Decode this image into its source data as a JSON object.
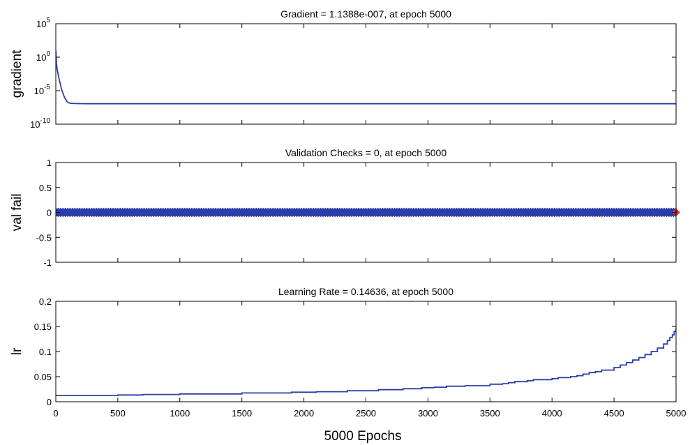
{
  "figure": {
    "xlabel": "5000 Epochs"
  },
  "colors": {
    "line": "#2b3ea8",
    "marker_end": "#d9282f",
    "axis": "#000000"
  },
  "chart_data": [
    {
      "type": "line",
      "title": "Gradient = 1.1388e-007, at epoch 5000",
      "ylabel": "gradient",
      "y_scale": "log",
      "xlim": [
        0,
        5000
      ],
      "ylim": [
        1e-10,
        100000
      ],
      "yticks": [
        1e-10,
        1e-05,
        1,
        100000
      ],
      "ytick_labels": [
        {
          "base": "10",
          "exp": "-10"
        },
        {
          "base": "10",
          "exp": "-5"
        },
        {
          "base": "10",
          "exp": "0"
        },
        {
          "base": "10",
          "exp": "5"
        }
      ],
      "xticks": [
        0,
        500,
        1000,
        1500,
        2000,
        2500,
        3000,
        3500,
        4000,
        4500,
        5000
      ],
      "series": [
        {
          "x": [
            0,
            5,
            10,
            20,
            30,
            40,
            50,
            60,
            70,
            80,
            90,
            100,
            120,
            150,
            200,
            300,
            500,
            1000,
            2000,
            3000,
            4000,
            5000
          ],
          "y": [
            10,
            0.1,
            0.02,
            0.002,
            0.0003,
            5e-05,
            1e-05,
            3e-06,
            1e-06,
            5e-07,
            2.5e-07,
            1.6e-07,
            1.3e-07,
            1.2e-07,
            1.15e-07,
            1.14e-07,
            1.14e-07,
            1.14e-07,
            1.14e-07,
            1.14e-07,
            1.14e-07,
            1.1388e-07
          ]
        }
      ]
    },
    {
      "type": "line",
      "title": "Validation Checks = 0, at epoch 5000",
      "ylabel": "val fail",
      "xlim": [
        0,
        5000
      ],
      "ylim": [
        -1,
        1
      ],
      "yticks": [
        -1,
        -0.5,
        0,
        0.5,
        1
      ],
      "ytick_labels": [
        "-1",
        "-0.5",
        "0",
        "0.5",
        "1"
      ],
      "xticks": [
        0,
        500,
        1000,
        1500,
        2000,
        2500,
        3000,
        3500,
        4000,
        4500,
        5000
      ],
      "series": [
        {
          "x": [
            0,
            5000
          ],
          "y": [
            0,
            0
          ],
          "marker": "diamond"
        }
      ],
      "end_marker": {
        "x": 5000,
        "y": 0
      }
    },
    {
      "type": "line",
      "title": "Learning Rate = 0.14636, at epoch 5000",
      "ylabel": "lr",
      "xlim": [
        0,
        5000
      ],
      "ylim": [
        0,
        0.2
      ],
      "yticks": [
        0,
        0.05,
        0.1,
        0.15,
        0.2
      ],
      "ytick_labels": [
        "0",
        "0.05",
        "0.1",
        "0.15",
        "0.2"
      ],
      "xticks": [
        0,
        500,
        1000,
        1500,
        2000,
        2500,
        3000,
        3500,
        4000,
        4500,
        5000
      ],
      "xtick_labels": [
        "0",
        "500",
        "1000",
        "1500",
        "2000",
        "2500",
        "3000",
        "3500",
        "4000",
        "4500",
        "5000"
      ],
      "series": [
        {
          "x": [
            0,
            500,
            700,
            1000,
            1500,
            1900,
            2100,
            2350,
            2600,
            2800,
            2950,
            3050,
            3150,
            3300,
            3500,
            3600,
            3650,
            3700,
            3800,
            3850,
            4000,
            4050,
            4150,
            4200,
            4250,
            4300,
            4350,
            4400,
            4500,
            4550,
            4600,
            4650,
            4700,
            4750,
            4800,
            4850,
            4900,
            4930,
            4950,
            4970,
            4985,
            5000
          ],
          "y": [
            0.0125,
            0.0135,
            0.0145,
            0.0155,
            0.0175,
            0.019,
            0.02,
            0.022,
            0.024,
            0.026,
            0.028,
            0.029,
            0.031,
            0.032,
            0.035,
            0.036,
            0.038,
            0.04,
            0.042,
            0.044,
            0.046,
            0.048,
            0.05,
            0.052,
            0.055,
            0.058,
            0.06,
            0.063,
            0.068,
            0.073,
            0.078,
            0.083,
            0.088,
            0.094,
            0.1,
            0.107,
            0.115,
            0.122,
            0.128,
            0.133,
            0.14,
            0.14636
          ]
        }
      ]
    }
  ]
}
